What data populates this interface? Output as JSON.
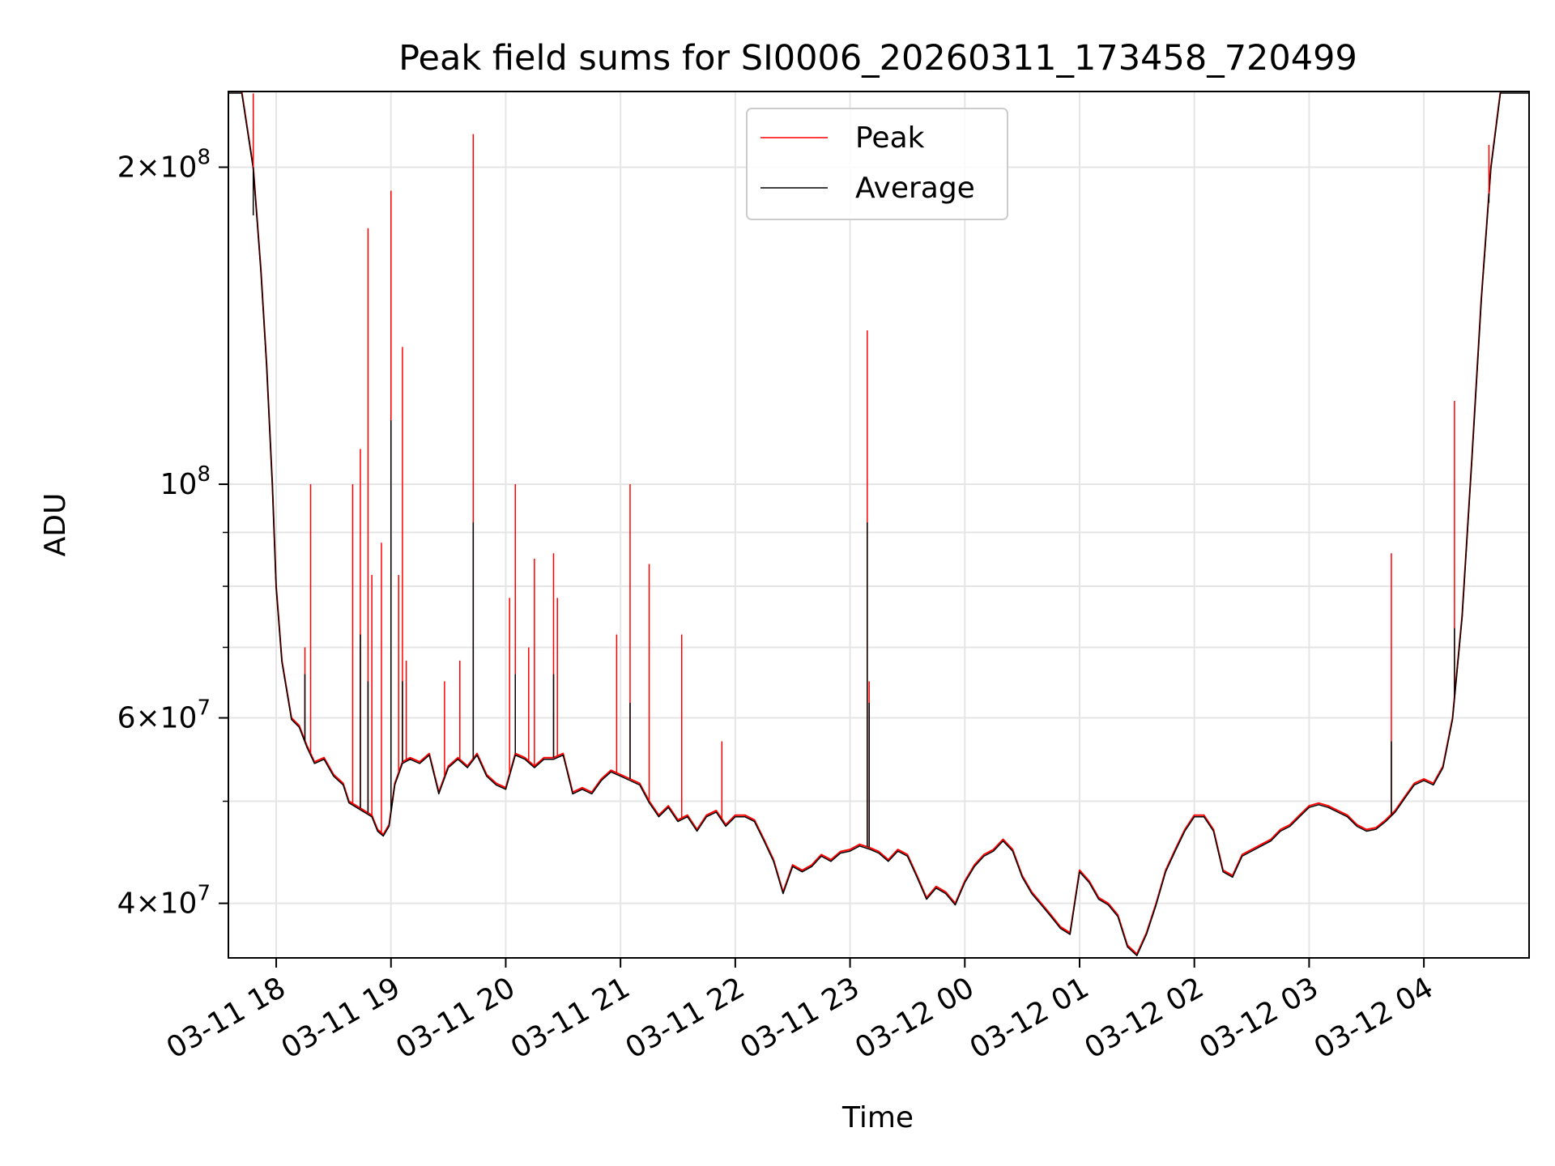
{
  "chart_data": {
    "type": "line",
    "title": "Peak field sums for SI0006_20260311_173458_720499",
    "xlabel": "Time",
    "ylabel": "ADU",
    "y_scale": "log",
    "ylim": [
      35500000,
      236000000
    ],
    "xlim": [
      "2026-03-11 17:35",
      "2026-03-12 04:55"
    ],
    "grid": true,
    "legend_position": "upper center",
    "x_tick_labels": [
      "03-11 18",
      "03-11 19",
      "03-11 20",
      "03-11 21",
      "03-11 22",
      "03-11 23",
      "03-12 00",
      "03-12 01",
      "03-12 02",
      "03-12 03",
      "03-12 04"
    ],
    "x_ticks": [
      "2026-03-11 18:00",
      "2026-03-11 19:00",
      "2026-03-11 20:00",
      "2026-03-11 21:00",
      "2026-03-11 22:00",
      "2026-03-11 23:00",
      "2026-03-12 00:00",
      "2026-03-12 01:00",
      "2026-03-12 02:00",
      "2026-03-12 03:00",
      "2026-03-12 04:00"
    ],
    "y_major_ticks": [
      {
        "value": 40000000,
        "mantissa": "4",
        "exponent": "7"
      },
      {
        "value": 60000000,
        "mantissa": "6",
        "exponent": "7"
      },
      {
        "value": 100000000,
        "mantissa": "",
        "exponent": "8"
      },
      {
        "value": 200000000,
        "mantissa": "2",
        "exponent": "8"
      }
    ],
    "y_minor_ticks": [
      50000000,
      70000000,
      80000000,
      90000000
    ],
    "series": [
      {
        "name": "Peak",
        "color": "#ff0000",
        "points": [
          [
            "2026-03-11 17:35",
            236000000
          ],
          [
            "2026-03-11 17:42",
            236000000
          ],
          [
            "2026-03-11 17:48",
            200000000
          ],
          [
            "2026-03-11 17:52",
            160000000
          ],
          [
            "2026-03-11 17:55",
            130000000
          ],
          [
            "2026-03-11 17:58",
            100000000
          ],
          [
            "2026-03-11 18:00",
            80000000
          ],
          [
            "2026-03-11 18:03",
            68000000
          ],
          [
            "2026-03-11 18:08",
            60000000
          ],
          [
            "2026-03-11 18:12",
            59000000
          ],
          [
            "2026-03-11 18:16",
            56500000
          ],
          [
            "2026-03-11 18:20",
            54500000
          ],
          [
            "2026-03-11 18:25",
            55000000
          ],
          [
            "2026-03-11 18:30",
            53000000
          ],
          [
            "2026-03-11 18:35",
            52000000
          ],
          [
            "2026-03-11 18:38",
            50000000
          ],
          [
            "2026-03-11 18:42",
            49500000
          ],
          [
            "2026-03-11 18:46",
            49000000
          ],
          [
            "2026-03-11 18:50",
            48500000
          ],
          [
            "2026-03-11 18:53",
            47000000
          ],
          [
            "2026-03-11 18:56",
            46500000
          ],
          [
            "2026-03-11 18:59",
            47500000
          ],
          [
            "2026-03-11 19:02",
            52000000
          ],
          [
            "2026-03-11 19:06",
            54500000
          ],
          [
            "2026-03-11 19:10",
            55000000
          ],
          [
            "2026-03-11 19:15",
            54500000
          ],
          [
            "2026-03-11 19:20",
            55500000
          ],
          [
            "2026-03-11 19:25",
            51000000
          ],
          [
            "2026-03-11 19:30",
            54000000
          ],
          [
            "2026-03-11 19:35",
            55000000
          ],
          [
            "2026-03-11 19:40",
            54000000
          ],
          [
            "2026-03-11 19:45",
            55500000
          ],
          [
            "2026-03-11 19:50",
            53000000
          ],
          [
            "2026-03-11 19:55",
            52000000
          ],
          [
            "2026-03-11 20:00",
            51500000
          ],
          [
            "2026-03-11 20:05",
            55500000
          ],
          [
            "2026-03-11 20:10",
            55000000
          ],
          [
            "2026-03-11 20:15",
            54000000
          ],
          [
            "2026-03-11 20:20",
            55000000
          ],
          [
            "2026-03-11 20:25",
            55000000
          ],
          [
            "2026-03-11 20:30",
            55500000
          ],
          [
            "2026-03-11 20:35",
            51000000
          ],
          [
            "2026-03-11 20:40",
            51500000
          ],
          [
            "2026-03-11 20:45",
            51000000
          ],
          [
            "2026-03-11 20:50",
            52500000
          ],
          [
            "2026-03-11 20:55",
            53500000
          ],
          [
            "2026-03-11 21:00",
            53000000
          ],
          [
            "2026-03-11 21:05",
            52500000
          ],
          [
            "2026-03-11 21:10",
            52000000
          ],
          [
            "2026-03-11 21:15",
            50000000
          ],
          [
            "2026-03-11 21:20",
            48500000
          ],
          [
            "2026-03-11 21:25",
            49500000
          ],
          [
            "2026-03-11 21:30",
            48000000
          ],
          [
            "2026-03-11 21:35",
            48500000
          ],
          [
            "2026-03-11 21:40",
            47000000
          ],
          [
            "2026-03-11 21:45",
            48500000
          ],
          [
            "2026-03-11 21:50",
            49000000
          ],
          [
            "2026-03-11 21:55",
            47500000
          ],
          [
            "2026-03-11 22:00",
            48500000
          ],
          [
            "2026-03-11 22:05",
            48500000
          ],
          [
            "2026-03-11 22:10",
            48000000
          ],
          [
            "2026-03-11 22:15",
            46000000
          ],
          [
            "2026-03-11 22:20",
            44000000
          ],
          [
            "2026-03-11 22:25",
            41000000
          ],
          [
            "2026-03-11 22:30",
            43500000
          ],
          [
            "2026-03-11 22:35",
            43000000
          ],
          [
            "2026-03-11 22:40",
            43500000
          ],
          [
            "2026-03-11 22:45",
            44500000
          ],
          [
            "2026-03-11 22:50",
            44000000
          ],
          [
            "2026-03-11 22:55",
            44800000
          ],
          [
            "2026-03-11 23:00",
            45000000
          ],
          [
            "2026-03-11 23:05",
            45500000
          ],
          [
            "2026-03-11 23:10",
            45200000
          ],
          [
            "2026-03-11 23:15",
            44800000
          ],
          [
            "2026-03-11 23:20",
            44000000
          ],
          [
            "2026-03-11 23:25",
            45000000
          ],
          [
            "2026-03-11 23:30",
            44500000
          ],
          [
            "2026-03-11 23:35",
            42500000
          ],
          [
            "2026-03-11 23:40",
            40500000
          ],
          [
            "2026-03-11 23:45",
            41500000
          ],
          [
            "2026-03-11 23:50",
            41000000
          ],
          [
            "2026-03-11 23:55",
            40000000
          ],
          [
            "2026-03-12 00:00",
            42000000
          ],
          [
            "2026-03-12 00:05",
            43500000
          ],
          [
            "2026-03-12 00:10",
            44500000
          ],
          [
            "2026-03-12 00:15",
            45000000
          ],
          [
            "2026-03-12 00:20",
            46000000
          ],
          [
            "2026-03-12 00:25",
            45000000
          ],
          [
            "2026-03-12 00:30",
            42500000
          ],
          [
            "2026-03-12 00:35",
            41000000
          ],
          [
            "2026-03-12 00:40",
            40000000
          ],
          [
            "2026-03-12 00:45",
            39000000
          ],
          [
            "2026-03-12 00:50",
            38000000
          ],
          [
            "2026-03-12 00:55",
            37500000
          ],
          [
            "2026-03-12 01:00",
            43000000
          ],
          [
            "2026-03-12 01:05",
            42000000
          ],
          [
            "2026-03-12 01:10",
            40500000
          ],
          [
            "2026-03-12 01:15",
            40000000
          ],
          [
            "2026-03-12 01:20",
            39000000
          ],
          [
            "2026-03-12 01:25",
            36500000
          ],
          [
            "2026-03-12 01:30",
            35800000
          ],
          [
            "2026-03-12 01:35",
            37500000
          ],
          [
            "2026-03-12 01:40",
            40000000
          ],
          [
            "2026-03-12 01:45",
            43000000
          ],
          [
            "2026-03-12 01:50",
            45000000
          ],
          [
            "2026-03-12 01:55",
            47000000
          ],
          [
            "2026-03-12 02:00",
            48500000
          ],
          [
            "2026-03-12 02:05",
            48500000
          ],
          [
            "2026-03-12 02:10",
            47000000
          ],
          [
            "2026-03-12 02:15",
            43000000
          ],
          [
            "2026-03-12 02:20",
            42500000
          ],
          [
            "2026-03-12 02:25",
            44500000
          ],
          [
            "2026-03-12 02:30",
            45000000
          ],
          [
            "2026-03-12 02:35",
            45500000
          ],
          [
            "2026-03-12 02:40",
            46000000
          ],
          [
            "2026-03-12 02:45",
            47000000
          ],
          [
            "2026-03-12 02:50",
            47500000
          ],
          [
            "2026-03-12 02:55",
            48500000
          ],
          [
            "2026-03-12 03:00",
            49500000
          ],
          [
            "2026-03-12 03:05",
            49800000
          ],
          [
            "2026-03-12 03:10",
            49500000
          ],
          [
            "2026-03-12 03:15",
            49000000
          ],
          [
            "2026-03-12 03:20",
            48500000
          ],
          [
            "2026-03-12 03:25",
            47500000
          ],
          [
            "2026-03-12 03:30",
            47000000
          ],
          [
            "2026-03-12 03:35",
            47200000
          ],
          [
            "2026-03-12 03:40",
            48000000
          ],
          [
            "2026-03-12 03:45",
            49000000
          ],
          [
            "2026-03-12 03:50",
            50500000
          ],
          [
            "2026-03-12 03:55",
            52000000
          ],
          [
            "2026-03-12 04:00",
            52500000
          ],
          [
            "2026-03-12 04:05",
            52000000
          ],
          [
            "2026-03-12 04:10",
            54000000
          ],
          [
            "2026-03-12 04:15",
            60000000
          ],
          [
            "2026-03-12 04:20",
            75000000
          ],
          [
            "2026-03-12 04:25",
            105000000
          ],
          [
            "2026-03-12 04:30",
            150000000
          ],
          [
            "2026-03-12 04:35",
            200000000
          ],
          [
            "2026-03-12 04:40",
            236000000
          ],
          [
            "2026-03-12 04:55",
            236000000
          ]
        ],
        "spikes": [
          [
            "2026-03-11 17:48",
            235000000
          ],
          [
            "2026-03-11 18:18",
            100000000
          ],
          [
            "2026-03-11 18:15",
            70000000
          ],
          [
            "2026-03-11 18:40",
            100000000
          ],
          [
            "2026-03-11 18:44",
            108000000
          ],
          [
            "2026-03-11 18:48",
            175000000
          ],
          [
            "2026-03-11 18:50",
            82000000
          ],
          [
            "2026-03-11 18:55",
            88000000
          ],
          [
            "2026-03-11 19:00",
            190000000
          ],
          [
            "2026-03-11 19:04",
            82000000
          ],
          [
            "2026-03-11 19:06",
            135000000
          ],
          [
            "2026-03-11 19:08",
            68000000
          ],
          [
            "2026-03-11 19:28",
            65000000
          ],
          [
            "2026-03-11 19:36",
            68000000
          ],
          [
            "2026-03-11 19:43",
            215000000
          ],
          [
            "2026-03-11 20:02",
            78000000
          ],
          [
            "2026-03-11 20:05",
            100000000
          ],
          [
            "2026-03-11 20:12",
            70000000
          ],
          [
            "2026-03-11 20:15",
            85000000
          ],
          [
            "2026-03-11 20:25",
            86000000
          ],
          [
            "2026-03-11 20:27",
            78000000
          ],
          [
            "2026-03-11 20:58",
            72000000
          ],
          [
            "2026-03-11 21:05",
            100000000
          ],
          [
            "2026-03-11 21:15",
            84000000
          ],
          [
            "2026-03-11 21:32",
            72000000
          ],
          [
            "2026-03-11 21:53",
            57000000
          ],
          [
            "2026-03-11 23:09",
            140000000
          ],
          [
            "2026-03-11 23:10",
            65000000
          ],
          [
            "2026-03-12 03:43",
            86000000
          ],
          [
            "2026-03-12 04:16",
            120000000
          ],
          [
            "2026-03-12 04:34",
            210000000
          ]
        ]
      },
      {
        "name": "Average",
        "color": "#000000",
        "spikes": [
          [
            "2026-03-11 17:48",
            180000000
          ],
          [
            "2026-03-11 18:15",
            66000000
          ],
          [
            "2026-03-11 18:44",
            72000000
          ],
          [
            "2026-03-11 18:48",
            65000000
          ],
          [
            "2026-03-11 19:00",
            115000000
          ],
          [
            "2026-03-11 19:06",
            65000000
          ],
          [
            "2026-03-11 19:43",
            92000000
          ],
          [
            "2026-03-11 20:05",
            66000000
          ],
          [
            "2026-03-11 20:25",
            66000000
          ],
          [
            "2026-03-11 21:05",
            62000000
          ],
          [
            "2026-03-11 23:09",
            92000000
          ],
          [
            "2026-03-11 23:10",
            62000000
          ],
          [
            "2026-03-12 03:43",
            57000000
          ],
          [
            "2026-03-12 04:16",
            73000000
          ],
          [
            "2026-03-12 04:34",
            185000000
          ]
        ]
      }
    ]
  }
}
